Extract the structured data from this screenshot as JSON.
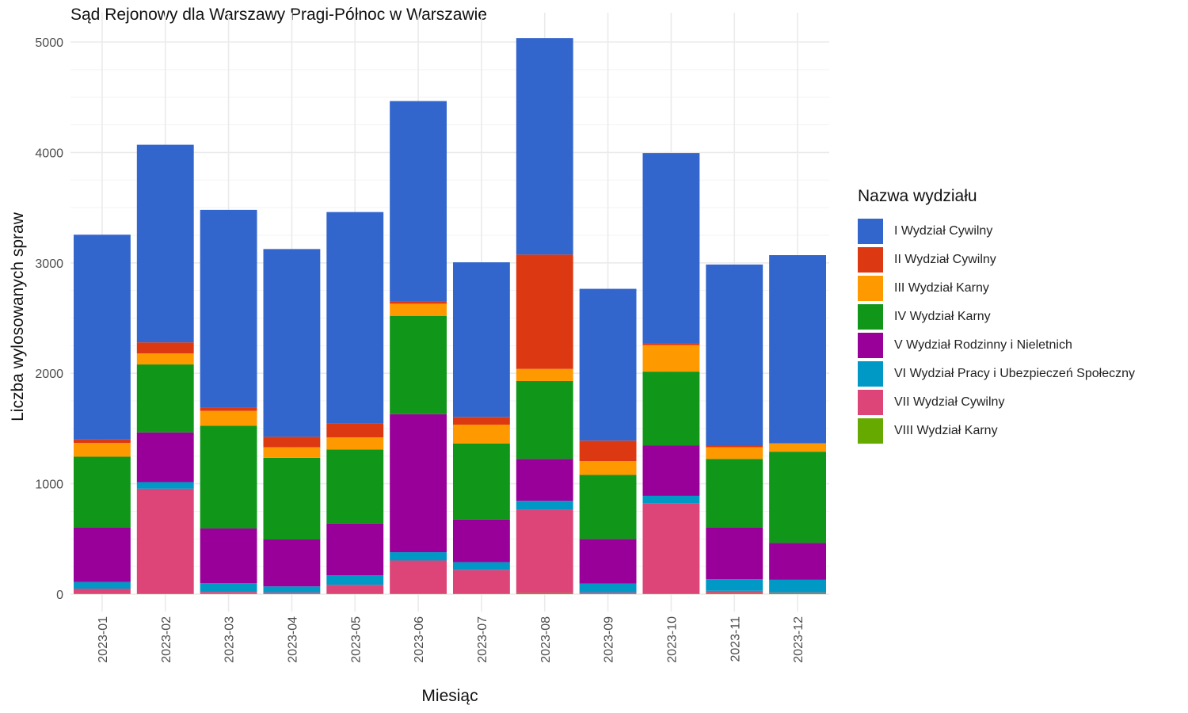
{
  "chart_data": {
    "type": "bar",
    "stacked": true,
    "title": "Sąd Rejonowy dla Warszawy Pragi-Północ w Warszawie",
    "xlabel": "Miesiąc",
    "ylabel": "Liczba wylosowanych spraw",
    "ylim": [
      0,
      5100
    ],
    "yticks": [
      0,
      1000,
      2000,
      3000,
      4000,
      5000
    ],
    "grid": true,
    "legend_title": "Nazwa wydziału",
    "legend_position": "right",
    "categories": [
      "2023-01",
      "2023-02",
      "2023-03",
      "2023-04",
      "2023-05",
      "2023-06",
      "2023-07",
      "2023-08",
      "2023-09",
      "2023-10",
      "2023-11",
      "2023-12"
    ],
    "series": [
      {
        "name": "VIII Wydział Karny",
        "color": "#66aa00",
        "values": [
          5,
          5,
          5,
          5,
          5,
          5,
          5,
          10,
          5,
          5,
          10,
          10
        ]
      },
      {
        "name": "VII Wydział Cywilny",
        "color": "#dd4477",
        "values": [
          45,
          950,
          15,
          10,
          80,
          300,
          215,
          755,
          10,
          815,
          20,
          5
        ]
      },
      {
        "name": "VI Wydział Pracy i Ubezpieczeń Społeczny",
        "color": "#0099c6",
        "values": [
          60,
          60,
          80,
          55,
          85,
          75,
          70,
          80,
          80,
          70,
          105,
          115
        ]
      },
      {
        "name": "V Wydział Rodzinny i Nieletnich",
        "color": "#990099",
        "values": [
          495,
          450,
          495,
          425,
          470,
          1250,
          385,
          380,
          405,
          455,
          470,
          335
        ]
      },
      {
        "name": "IV Wydział Karny",
        "color": "#109618",
        "values": [
          640,
          615,
          930,
          740,
          670,
          890,
          690,
          705,
          580,
          670,
          620,
          825
        ]
      },
      {
        "name": "III Wydział Karny",
        "color": "#ff9900",
        "values": [
          125,
          100,
          135,
          95,
          110,
          110,
          170,
          110,
          125,
          240,
          105,
          75
        ]
      },
      {
        "name": "II Wydział Cywilny",
        "color": "#dc3912",
        "values": [
          30,
          100,
          30,
          95,
          125,
          20,
          70,
          1035,
          185,
          15,
          15,
          5
        ]
      },
      {
        "name": "I Wydział Cywilny",
        "color": "#3366cc",
        "values": [
          1855,
          1790,
          1790,
          1700,
          1915,
          1815,
          1400,
          1960,
          1375,
          1725,
          1640,
          1700
        ]
      }
    ]
  }
}
